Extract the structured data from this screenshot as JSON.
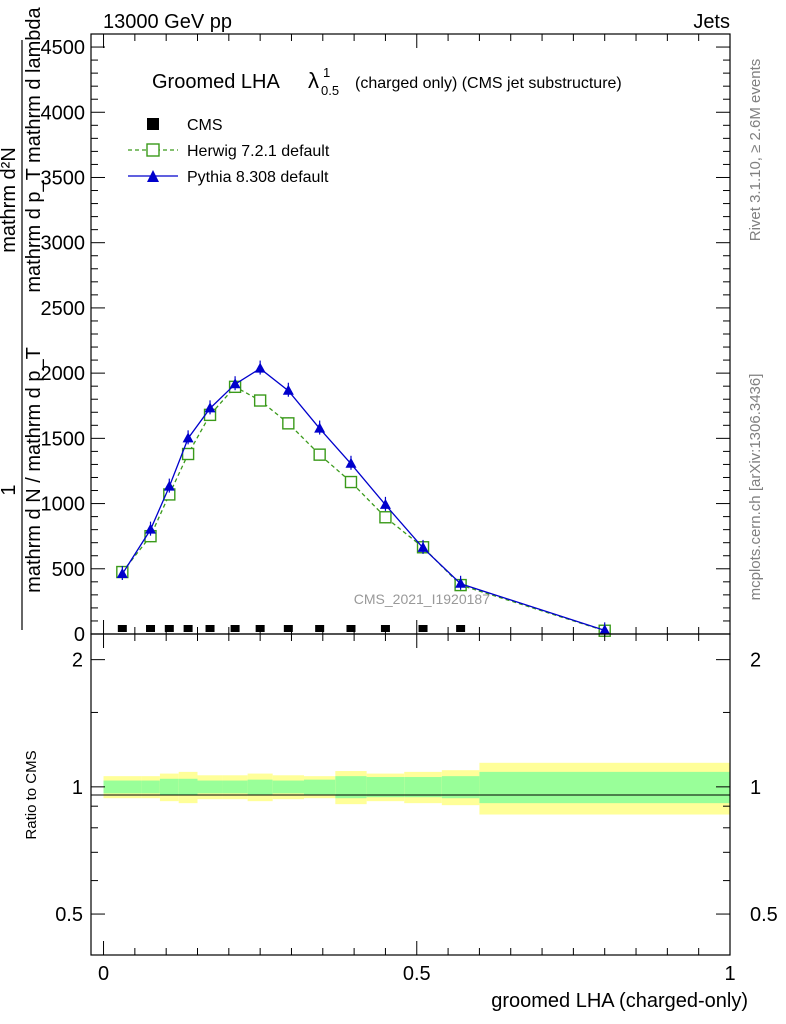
{
  "header": {
    "left": "13000 GeV pp",
    "right": "Jets"
  },
  "side_text": {
    "rivet": "Rivet 3.1.10, ≥ 2.6M events",
    "mcplots": "mcplots.cern.ch [arXiv:1306.3436]"
  },
  "chart_data": [
    {
      "type": "line",
      "title_main": "Groomed LHA",
      "title_symbol": "λ",
      "title_sup": "1",
      "title_sub": "0.5",
      "title_rest": "(charged only) (CMS jet substructure)",
      "ylabel_num": "mathrm d²N",
      "ylabel_num2": "mathrm d p_T mathrm d lambda",
      "ylabel_frac_one": "1",
      "ylabel_den": "mathrm d N / mathrm d p_T",
      "watermark": "CMS_2021_I1920187",
      "ylim": [
        0,
        4600
      ],
      "xlim": [
        -0.02,
        1.0
      ],
      "yticks": [
        "0",
        "500",
        "1000",
        "1500",
        "2000",
        "2500",
        "3000",
        "3500",
        "4000",
        "4500"
      ],
      "legend_position": "top-left",
      "series": [
        {
          "name": "CMS",
          "color": "#000000",
          "marker": "filled-square",
          "x": [
            0.03,
            0.075,
            0.105,
            0.135,
            0.17,
            0.21,
            0.25,
            0.295,
            0.345,
            0.395,
            0.45,
            0.51,
            0.57
          ],
          "y": [
            0,
            0,
            0,
            0,
            0,
            0,
            0,
            0,
            0,
            0,
            0,
            0,
            0
          ]
        },
        {
          "name": "Herwig 7.2.1 default",
          "color": "#3a9a1a",
          "marker": "open-square",
          "x": [
            0.03,
            0.075,
            0.105,
            0.135,
            0.17,
            0.21,
            0.25,
            0.295,
            0.345,
            0.395,
            0.45,
            0.51,
            0.57,
            0.8
          ],
          "y": [
            475,
            750,
            1070,
            1380,
            1680,
            1895,
            1790,
            1615,
            1375,
            1165,
            895,
            665,
            375,
            25
          ]
        },
        {
          "name": "Pythia 8.308 default",
          "color": "#0000cc",
          "marker": "filled-triangle",
          "x": [
            0.03,
            0.075,
            0.105,
            0.135,
            0.17,
            0.21,
            0.25,
            0.295,
            0.345,
            0.395,
            0.45,
            0.51,
            0.57,
            0.8
          ],
          "y": [
            460,
            800,
            1130,
            1500,
            1730,
            1915,
            2035,
            1865,
            1575,
            1305,
            990,
            660,
            385,
            28
          ]
        }
      ]
    },
    {
      "type": "area",
      "ylabel": "Ratio to CMS",
      "xlabel": "groomed LHA (charged-only)",
      "xticks": [
        "0",
        "0.5",
        "1"
      ],
      "yticks": [
        "0.5",
        "1",
        "2"
      ],
      "ylim": [
        0.4,
        2.3
      ],
      "log_y": true,
      "bands": {
        "bin_edges": [
          0.0,
          0.06,
          0.09,
          0.12,
          0.15,
          0.19,
          0.23,
          0.27,
          0.32,
          0.37,
          0.42,
          0.48,
          0.54,
          0.6,
          1.0
        ],
        "inner_lo": [
          0.965,
          0.965,
          0.955,
          0.955,
          0.965,
          0.965,
          0.96,
          0.965,
          0.96,
          0.94,
          0.945,
          0.945,
          0.94,
          0.915
        ],
        "inner_hi": [
          1.035,
          1.035,
          1.045,
          1.045,
          1.035,
          1.035,
          1.04,
          1.035,
          1.04,
          1.06,
          1.055,
          1.055,
          1.06,
          1.085
        ],
        "outer_lo": [
          0.94,
          0.94,
          0.925,
          0.915,
          0.935,
          0.935,
          0.925,
          0.935,
          0.94,
          0.91,
          0.925,
          0.915,
          0.905,
          0.86
        ],
        "outer_hi": [
          1.06,
          1.06,
          1.075,
          1.085,
          1.065,
          1.065,
          1.075,
          1.065,
          1.06,
          1.09,
          1.075,
          1.085,
          1.095,
          1.14
        ],
        "inner_color": "#99ff99",
        "outer_color": "#ffff99"
      }
    }
  ]
}
